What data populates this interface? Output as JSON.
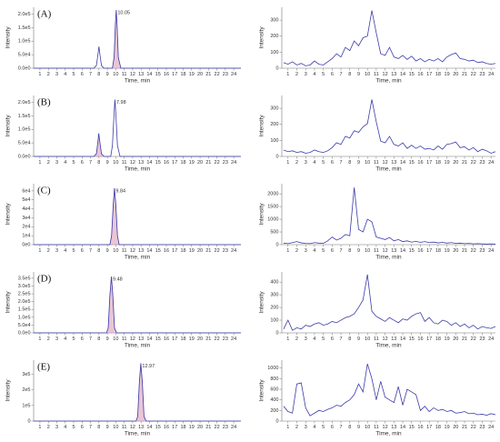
{
  "chart_data": [
    {
      "type": "line",
      "panel": "(A)",
      "xlabel": "Time, min",
      "ylabel": "Intensity",
      "color": "#3b3ba8",
      "shade_color": "#e9c6d6",
      "peak_label": "10.05",
      "x": [
        0.25,
        7.4,
        7.7,
        7.9,
        8.0,
        8.1,
        8.3,
        8.6,
        9.6,
        9.8,
        9.95,
        10.05,
        10.15,
        10.3,
        10.6,
        24.85
      ],
      "values": [
        0,
        0,
        10000,
        55000,
        80000,
        55000,
        10000,
        0,
        0,
        40000,
        160000,
        215000,
        160000,
        40000,
        0,
        0
      ],
      "shade": [
        9.6,
        10.6
      ],
      "xlim": [
        0.25,
        24.85
      ],
      "ylim": [
        0,
        225000
      ],
      "xticks": [
        1,
        2,
        3,
        4,
        5,
        6,
        7,
        8,
        9,
        10,
        11,
        12,
        13,
        14,
        15,
        16,
        17,
        18,
        19,
        20,
        21,
        22,
        23,
        24
      ],
      "yticks": [
        {
          "value": 0,
          "label": "0.0e0"
        },
        {
          "value": 50000,
          "label": "5.0e4"
        },
        {
          "value": 100000,
          "label": "1.0e5"
        },
        {
          "value": 150000,
          "label": "1.5e5"
        },
        {
          "value": 200000,
          "label": "2.0e5"
        }
      ]
    },
    {
      "type": "line",
      "xlabel": "Time, min",
      "ylabel": "Intensity",
      "color": "#3b3ba8",
      "x": [
        0.5,
        1,
        1.5,
        2,
        2.5,
        3,
        3.5,
        4,
        4.5,
        5,
        5.5,
        6,
        6.5,
        7,
        7.5,
        8,
        8.5,
        9,
        9.5,
        10,
        10.5,
        11,
        11.5,
        12,
        12.5,
        13,
        13.5,
        14,
        14.5,
        15,
        15.5,
        16,
        16.5,
        17,
        17.5,
        18,
        18.5,
        19,
        19.5,
        20,
        20.5,
        21,
        21.5,
        22,
        22.5,
        23,
        23.5,
        24,
        24.5
      ],
      "values": [
        35,
        25,
        40,
        20,
        30,
        15,
        20,
        45,
        25,
        20,
        40,
        60,
        90,
        70,
        130,
        110,
        170,
        140,
        190,
        200,
        360,
        220,
        90,
        80,
        130,
        70,
        60,
        80,
        55,
        75,
        45,
        60,
        40,
        55,
        45,
        60,
        40,
        70,
        85,
        95,
        60,
        55,
        45,
        50,
        35,
        40,
        30,
        25,
        30
      ],
      "xlim": [
        0.3,
        24.5
      ],
      "ylim": [
        0,
        380
      ],
      "xticks": [
        1,
        2,
        3,
        4,
        5,
        6,
        7,
        8,
        9,
        10,
        11,
        12,
        13,
        14,
        15,
        16,
        17,
        18,
        19,
        20,
        21,
        22,
        23,
        24
      ],
      "yticks": [
        0,
        100,
        200,
        300
      ]
    },
    {
      "type": "line",
      "panel": "(B)",
      "xlabel": "Time, min",
      "ylabel": "Intensity",
      "color": "#3b3ba8",
      "shade_color": "#e9c6d6",
      "peak_label": "7.98",
      "x": [
        0.25,
        7.4,
        7.7,
        7.9,
        7.98,
        8.1,
        8.3,
        8.6,
        9.4,
        9.6,
        9.8,
        9.9,
        10.0,
        10.2,
        10.5,
        24.85
      ],
      "values": [
        0,
        0,
        10000,
        60000,
        85000,
        55000,
        10000,
        0,
        0,
        40000,
        160000,
        210000,
        160000,
        40000,
        0,
        0
      ],
      "shade": [
        7.4,
        8.6
      ],
      "xlim": [
        0.25,
        24.85
      ],
      "ylim": [
        0,
        225000
      ],
      "xticks": [
        1,
        2,
        3,
        4,
        5,
        6,
        7,
        8,
        9,
        10,
        11,
        12,
        13,
        14,
        15,
        16,
        17,
        18,
        19,
        20,
        21,
        22,
        23,
        24
      ],
      "yticks": [
        {
          "value": 0,
          "label": "0.0e0"
        },
        {
          "value": 50000,
          "label": "5.0e4"
        },
        {
          "value": 100000,
          "label": "1.0e5"
        },
        {
          "value": 150000,
          "label": "1.5e5"
        },
        {
          "value": 200000,
          "label": "2.0e5"
        }
      ]
    },
    {
      "type": "line",
      "xlabel": "Time, min",
      "ylabel": "Intensity",
      "color": "#3b3ba8",
      "x": [
        0.5,
        1,
        1.5,
        2,
        2.5,
        3,
        3.5,
        4,
        4.5,
        5,
        5.5,
        6,
        6.5,
        7,
        7.5,
        8,
        8.5,
        9,
        9.5,
        10,
        10.5,
        11,
        11.5,
        12,
        12.5,
        13,
        13.5,
        14,
        14.5,
        15,
        15.5,
        16,
        16.5,
        17,
        17.5,
        18,
        18.5,
        19,
        19.5,
        20,
        20.5,
        21,
        21.5,
        22,
        22.5,
        23,
        23.5,
        24,
        24.5
      ],
      "values": [
        40,
        30,
        35,
        25,
        30,
        20,
        25,
        40,
        30,
        25,
        35,
        55,
        85,
        75,
        125,
        115,
        160,
        150,
        185,
        205,
        355,
        215,
        95,
        85,
        125,
        75,
        65,
        85,
        50,
        70,
        50,
        65,
        45,
        50,
        40,
        65,
        45,
        75,
        80,
        90,
        55,
        60,
        40,
        55,
        30,
        45,
        35,
        20,
        30
      ],
      "xlim": [
        0.3,
        24.5
      ],
      "ylim": [
        0,
        380
      ],
      "xticks": [
        1,
        2,
        3,
        4,
        5,
        6,
        7,
        8,
        9,
        10,
        11,
        12,
        13,
        14,
        15,
        16,
        17,
        18,
        19,
        20,
        21,
        22,
        23,
        24
      ],
      "yticks": [
        0,
        100,
        200,
        300
      ]
    },
    {
      "type": "line",
      "panel": "(C)",
      "xlabel": "Time, min",
      "ylabel": "Intensity",
      "color": "#3b3ba8",
      "shade_color": "#e9c6d6",
      "peak_label": "9.84",
      "x": [
        0.25,
        9.3,
        9.5,
        9.7,
        9.84,
        10.0,
        10.2,
        10.4,
        24.85
      ],
      "values": [
        0,
        0,
        10000,
        45000,
        63000,
        45000,
        10000,
        0,
        0
      ],
      "shade": [
        9.3,
        10.4
      ],
      "xlim": [
        0.25,
        24.85
      ],
      "ylim": [
        0,
        68000
      ],
      "xticks": [
        1,
        2,
        3,
        4,
        5,
        6,
        7,
        8,
        9,
        10,
        11,
        12,
        13,
        14,
        15,
        16,
        17,
        18,
        19,
        20,
        21,
        22,
        23,
        24
      ],
      "yticks": [
        {
          "value": 0,
          "label": "0e0"
        },
        {
          "value": 10000,
          "label": "1e4"
        },
        {
          "value": 20000,
          "label": "2e4"
        },
        {
          "value": 30000,
          "label": "3e4"
        },
        {
          "value": 40000,
          "label": "4e4"
        },
        {
          "value": 50000,
          "label": "5e4"
        },
        {
          "value": 60000,
          "label": "6e4"
        }
      ]
    },
    {
      "type": "line",
      "xlabel": "Time, min",
      "ylabel": "Intensity",
      "color": "#3b3ba8",
      "x": [
        0.5,
        1,
        1.5,
        2,
        2.5,
        3,
        3.5,
        4,
        4.5,
        5,
        5.5,
        6,
        6.5,
        7,
        7.5,
        8,
        8.5,
        9,
        9.5,
        10,
        10.5,
        11,
        11.5,
        12,
        12.5,
        13,
        13.5,
        14,
        14.5,
        15,
        15.5,
        16,
        16.5,
        17,
        17.5,
        18,
        18.5,
        19,
        19.5,
        20,
        20.5,
        21,
        21.5,
        22,
        22.5,
        23,
        23.5,
        24,
        24.5
      ],
      "values": [
        60,
        40,
        80,
        120,
        70,
        50,
        40,
        80,
        60,
        50,
        150,
        300,
        180,
        250,
        400,
        350,
        2250,
        600,
        500,
        1000,
        900,
        300,
        250,
        200,
        280,
        150,
        200,
        120,
        150,
        100,
        130,
        90,
        120,
        80,
        100,
        70,
        90,
        60,
        80,
        50,
        60,
        40,
        50,
        30,
        40,
        30,
        20,
        30,
        20
      ],
      "xlim": [
        0.3,
        24.5
      ],
      "ylim": [
        0,
        2400
      ],
      "xticks": [
        1,
        2,
        3,
        4,
        5,
        6,
        7,
        8,
        9,
        10,
        11,
        12,
        13,
        14,
        15,
        16,
        17,
        18,
        19,
        20,
        21,
        22,
        23,
        24
      ],
      "yticks": [
        0,
        500,
        1000,
        1500,
        2000
      ]
    },
    {
      "type": "line",
      "panel": "(D)",
      "xlabel": "Time, min",
      "ylabel": "Intensity",
      "color": "#3b3ba8",
      "shade_color": "#e9c6d6",
      "peak_label": "9.48",
      "x": [
        0.25,
        8.9,
        9.1,
        9.3,
        9.48,
        9.65,
        9.85,
        10.1,
        24.85
      ],
      "values": [
        0,
        0,
        30000,
        240000,
        360000,
        240000,
        30000,
        0,
        0
      ],
      "shade": [
        8.9,
        10.1
      ],
      "xlim": [
        0.25,
        24.85
      ],
      "ylim": [
        0,
        390000
      ],
      "xticks": [
        1,
        2,
        3,
        4,
        5,
        6,
        7,
        8,
        9,
        10,
        11,
        12,
        13,
        14,
        15,
        16,
        17,
        18,
        19,
        20,
        21,
        22,
        23,
        24
      ],
      "yticks": [
        {
          "value": 0,
          "label": "0.0e0"
        },
        {
          "value": 50000,
          "label": "5.0e4"
        },
        {
          "value": 100000,
          "label": "1.0e5"
        },
        {
          "value": 150000,
          "label": "1.5e5"
        },
        {
          "value": 200000,
          "label": "2.0e5"
        },
        {
          "value": 250000,
          "label": "2.5e5"
        },
        {
          "value": 300000,
          "label": "3.0e5"
        },
        {
          "value": 350000,
          "label": "3.5e5"
        }
      ]
    },
    {
      "type": "line",
      "xlabel": "Time, min",
      "ylabel": "Intensity",
      "color": "#3b3ba8",
      "x": [
        0.5,
        1,
        1.5,
        2,
        2.5,
        3,
        3.5,
        4,
        4.5,
        5,
        5.5,
        6,
        6.5,
        7,
        7.5,
        8,
        8.5,
        9,
        9.5,
        10,
        10.5,
        11,
        11.5,
        12,
        12.5,
        13,
        13.5,
        14,
        14.5,
        15,
        15.5,
        16,
        16.5,
        17,
        17.5,
        18,
        18.5,
        19,
        19.5,
        20,
        20.5,
        21,
        21.5,
        22,
        22.5,
        23,
        23.5,
        24,
        24.5
      ],
      "values": [
        30,
        100,
        20,
        40,
        30,
        60,
        50,
        70,
        80,
        60,
        70,
        90,
        80,
        100,
        120,
        130,
        150,
        200,
        260,
        460,
        170,
        130,
        110,
        90,
        120,
        100,
        80,
        110,
        100,
        130,
        150,
        160,
        90,
        120,
        80,
        70,
        100,
        90,
        60,
        80,
        50,
        70,
        40,
        60,
        30,
        50,
        40,
        35,
        50
      ],
      "xlim": [
        0.3,
        24.5
      ],
      "ylim": [
        0,
        480
      ],
      "xticks": [
        1,
        2,
        3,
        4,
        5,
        6,
        7,
        8,
        9,
        10,
        11,
        12,
        13,
        14,
        15,
        16,
        17,
        18,
        19,
        20,
        21,
        22,
        23,
        24
      ],
      "yticks": [
        0,
        100,
        200,
        300,
        400
      ]
    },
    {
      "type": "line",
      "panel": "(E)",
      "xlabel": "Time, min",
      "ylabel": "Intensity",
      "color": "#3b3ba8",
      "shade_color": "#e9c6d6",
      "peak_label": "12.97",
      "x": [
        0.25,
        12.4,
        12.6,
        12.8,
        12.97,
        13.15,
        13.35,
        13.6,
        24.85
      ],
      "values": [
        0,
        0,
        30000,
        250000,
        370000,
        250000,
        30000,
        0,
        0
      ],
      "shade": [
        12.4,
        13.6
      ],
      "xlim": [
        0.25,
        24.85
      ],
      "ylim": [
        0,
        390000
      ],
      "xticks": [
        1,
        2,
        3,
        4,
        5,
        6,
        7,
        8,
        9,
        10,
        11,
        12,
        13,
        14,
        15,
        16,
        17,
        18,
        19,
        20,
        21,
        22,
        23,
        24
      ],
      "yticks": [
        0,
        {
          "value": 100000,
          "label": "1e5"
        },
        {
          "value": 200000,
          "label": "2e5"
        },
        {
          "value": 300000,
          "label": "3e5"
        }
      ]
    },
    {
      "type": "line",
      "xlabel": "Time, min",
      "ylabel": "Intensity",
      "color": "#3b3ba8",
      "x": [
        0.5,
        1,
        1.5,
        2,
        2.5,
        3,
        3.5,
        4,
        4.5,
        5,
        5.5,
        6,
        6.5,
        7,
        7.5,
        8,
        8.5,
        9,
        9.5,
        10,
        10.5,
        11,
        11.5,
        12,
        12.5,
        13,
        13.5,
        14,
        14.5,
        15,
        15.5,
        16,
        16.5,
        17,
        17.5,
        18,
        18.5,
        19,
        19.5,
        20,
        20.5,
        21,
        21.5,
        22,
        22.5,
        23,
        23.5,
        24,
        24.5
      ],
      "values": [
        280,
        180,
        150,
        700,
        720,
        250,
        100,
        150,
        200,
        180,
        220,
        250,
        300,
        280,
        350,
        400,
        500,
        700,
        550,
        1080,
        800,
        400,
        750,
        450,
        400,
        350,
        650,
        300,
        600,
        550,
        500,
        200,
        280,
        180,
        250,
        200,
        220,
        180,
        200,
        150,
        160,
        180,
        140,
        150,
        120,
        130,
        110,
        140,
        120
      ],
      "xlim": [
        0.3,
        24.5
      ],
      "ylim": [
        0,
        1150
      ],
      "xticks": [
        1,
        2,
        3,
        4,
        5,
        6,
        7,
        8,
        9,
        10,
        11,
        12,
        13,
        14,
        15,
        16,
        17,
        18,
        19,
        20,
        21,
        22,
        23,
        24
      ],
      "yticks": [
        0,
        200,
        400,
        600,
        800,
        1000
      ]
    }
  ]
}
